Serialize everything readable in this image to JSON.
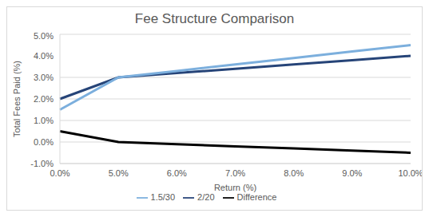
{
  "chart_data": {
    "type": "line",
    "title": "Fee Structure Comparison",
    "x_label": "Return (%)",
    "y_label": "Total Fees Paid (%)",
    "categories": [
      "0.0%",
      "5.0%",
      "6.0%",
      "7.0%",
      "8.0%",
      "9.0%",
      "10.0%"
    ],
    "series": [
      {
        "name": "2/20",
        "color": "#264478",
        "values": [
          2.0,
          3.0,
          3.2,
          3.4,
          3.6,
          3.8,
          4.0
        ]
      },
      {
        "name": "1.5/30",
        "color": "#7cafdd",
        "values": [
          1.5,
          3.0,
          3.3,
          3.6,
          3.9,
          4.2,
          4.5
        ]
      },
      {
        "name": "Difference",
        "color": "#000000",
        "values": [
          0.5,
          0.0,
          -0.1,
          -0.2,
          -0.3,
          -0.4,
          -0.5
        ]
      }
    ],
    "ylim": [
      -1,
      5
    ],
    "yticks": [
      {
        "value": -1,
        "label": "-1.0%"
      },
      {
        "value": 0,
        "label": "0.0%"
      },
      {
        "value": 1,
        "label": "1.0%"
      },
      {
        "value": 2,
        "label": "2.0%"
      },
      {
        "value": 3,
        "label": "3.0%"
      },
      {
        "value": 4,
        "label": "4.0%"
      },
      {
        "value": 5,
        "label": "5.0%"
      }
    ],
    "grid": true,
    "legend": "bottom"
  }
}
